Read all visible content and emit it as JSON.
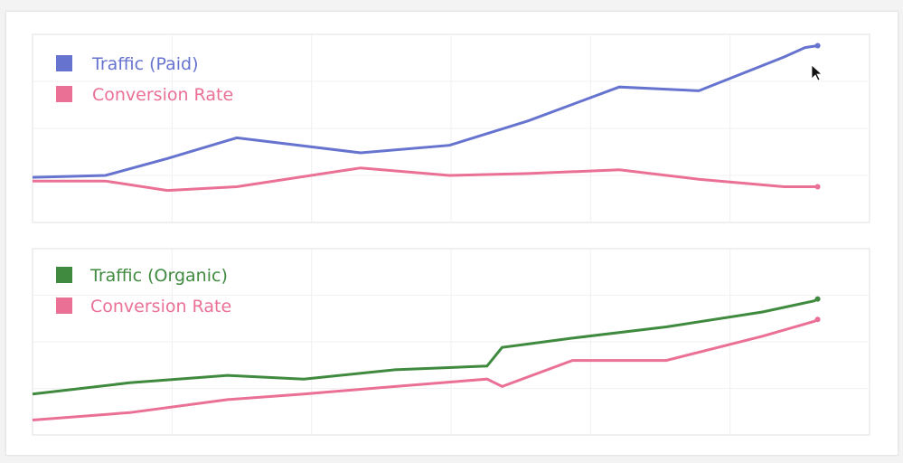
{
  "chart_data": [
    {
      "type": "line",
      "x": [
        1,
        2,
        3,
        4,
        5,
        6,
        7,
        8,
        9,
        10,
        11,
        12
      ],
      "series": [
        {
          "name": "Traffic (Paid)",
          "color": "#6673cf",
          "values": [
            24,
            25,
            34,
            45,
            37,
            41,
            54,
            72,
            70,
            88,
            93,
            94
          ]
        },
        {
          "name": "Conversion Rate",
          "color": "#ea7096",
          "values": [
            22,
            22,
            17,
            19,
            29,
            25,
            26,
            28,
            23,
            19,
            19,
            19
          ]
        }
      ],
      "x_pos": [
        0,
        0.087,
        0.161,
        0.244,
        0.392,
        0.498,
        0.592,
        0.701,
        0.796,
        0.898,
        0.923,
        0.938
      ],
      "ylim": [
        0,
        100
      ],
      "grid": true,
      "legend": "top-left"
    },
    {
      "type": "line",
      "x": [
        1,
        2,
        3,
        4,
        5,
        6,
        7,
        8,
        9,
        10,
        11,
        12
      ],
      "series": [
        {
          "name": "Traffic (Organic)",
          "color": "#3f8a3f",
          "values": [
            22,
            28,
            32,
            30,
            35,
            37,
            47,
            52,
            58,
            66,
            72,
            73
          ]
        },
        {
          "name": "Conversion Rate",
          "color": "#ea7096",
          "values": [
            8,
            12,
            19,
            22,
            26,
            30,
            26,
            40,
            40,
            53,
            61,
            62
          ]
        }
      ],
      "x_pos": [
        0,
        0.116,
        0.233,
        0.324,
        0.433,
        0.543,
        0.561,
        0.645,
        0.757,
        0.872,
        0.934,
        0.938
      ],
      "ylim": [
        0,
        100
      ],
      "grid": true,
      "legend": "top-left"
    }
  ]
}
